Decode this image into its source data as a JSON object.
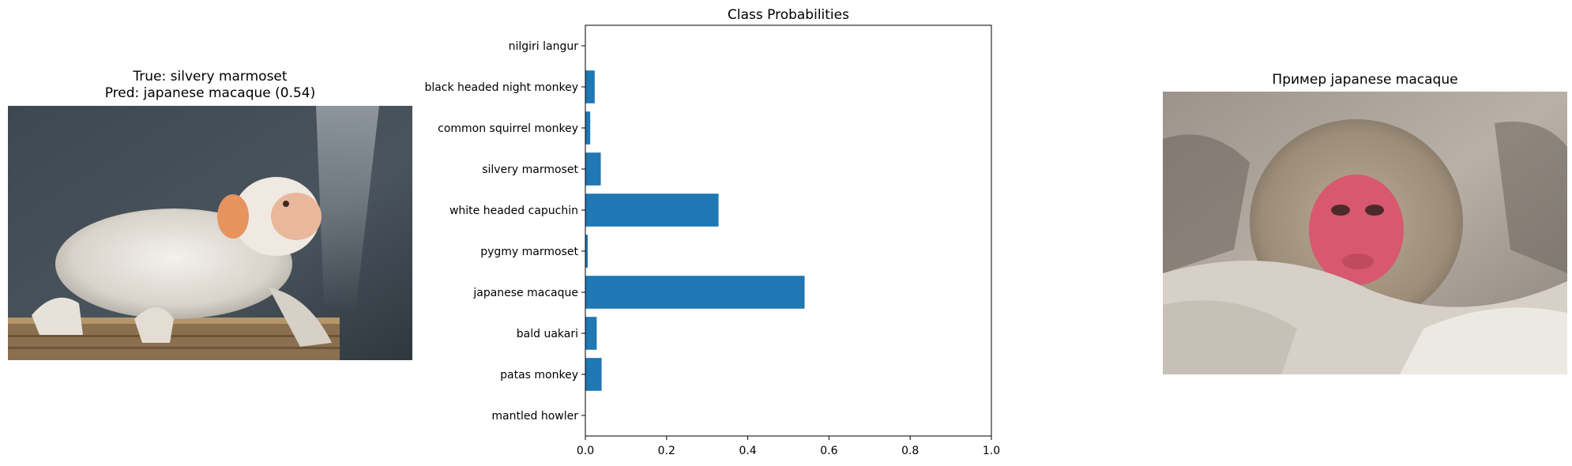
{
  "left_panel": {
    "title_line1": "True: silvery marmoset",
    "title_line2": "Pred: japanese macaque (0.54)",
    "image_subject": "silvery marmoset photo"
  },
  "right_panel": {
    "title": "Пример japanese macaque",
    "image_subject": "japanese macaque photo"
  },
  "chart_data": {
    "type": "bar",
    "orientation": "horizontal",
    "title": "Class Probabilities",
    "categories": [
      "mantled howler",
      "patas monkey",
      "bald uakari",
      "japanese macaque",
      "pygmy marmoset",
      "white headed capuchin",
      "silvery marmoset",
      "common squirrel monkey",
      "black headed night monkey",
      "nilgiri langur"
    ],
    "values": [
      0.001,
      0.04,
      0.028,
      0.54,
      0.006,
      0.328,
      0.038,
      0.012,
      0.023,
      0.001
    ],
    "xlim": [
      0,
      1.0
    ],
    "xticks": [
      "0.0",
      "0.2",
      "0.4",
      "0.6",
      "0.8",
      "1.0"
    ],
    "xlabel": "",
    "ylabel": "",
    "bar_color": "#1f77b4",
    "grid": false
  }
}
